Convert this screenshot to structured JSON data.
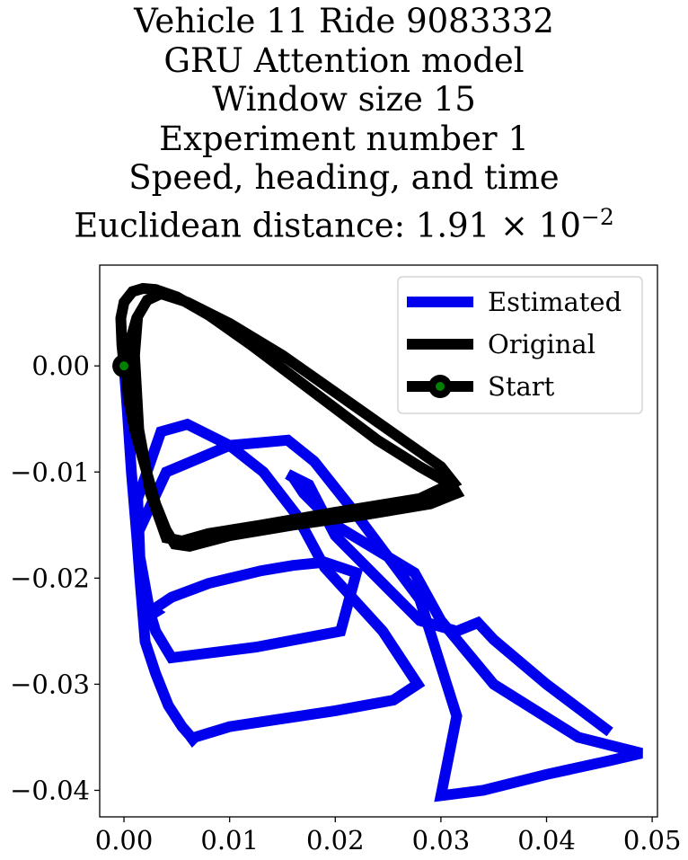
{
  "chart_data": {
    "type": "line",
    "title_lines": [
      "Vehicle 11 Ride 9083332",
      "GRU Attention model",
      "Window size 15",
      "Experiment number 1",
      "Speed, heading, and time"
    ],
    "title_metric": {
      "prefix": "Euclidean distance: ",
      "mantissa": "1.91",
      "times": "×",
      "base": "10",
      "exponent": "−2"
    },
    "xlabel": "",
    "ylabel": "",
    "xlim": [
      -0.0023,
      0.0505
    ],
    "ylim": [
      -0.0425,
      0.0095
    ],
    "x_ticks": [
      0.0,
      0.01,
      0.02,
      0.03,
      0.04,
      0.05
    ],
    "x_tick_labels": [
      "0.00",
      "0.01",
      "0.02",
      "0.03",
      "0.04",
      "0.05"
    ],
    "y_ticks": [
      0.0,
      -0.01,
      -0.02,
      -0.03,
      -0.04
    ],
    "y_tick_labels": [
      "0.00",
      "−0.01",
      "−0.02",
      "−0.03",
      "−0.04"
    ],
    "grid": false,
    "legend_position": "top-right",
    "colors": {
      "estimated": "#0000ee",
      "original": "#000000",
      "start_marker": "#008000"
    },
    "series": [
      {
        "name": "Estimated",
        "color": "#0000ee",
        "x": [
          0.0,
          0.0003,
          0.0007,
          0.0012,
          0.0015,
          0.002,
          0.003,
          0.0042,
          0.0055,
          0.0062,
          0.0065,
          0.0067,
          0.01,
          0.02,
          0.0255,
          0.0278,
          0.0245,
          0.019,
          0.0163,
          0.0132,
          0.01,
          0.006,
          0.0035,
          0.0013,
          0.0015,
          0.0025,
          0.003,
          0.0027,
          0.0045,
          0.008,
          0.013,
          0.016,
          0.019,
          0.022,
          0.0205,
          0.0125,
          0.0045,
          0.003,
          0.0015,
          0.0012,
          0.004,
          0.01,
          0.0155,
          0.018,
          0.022,
          0.028,
          0.0315,
          0.03,
          0.034,
          0.036,
          0.04,
          0.046,
          0.049,
          0.043,
          0.035,
          0.03,
          0.0275,
          0.02,
          0.017,
          0.016,
          0.0155,
          0.0175,
          0.02,
          0.028,
          0.0315,
          0.0335,
          0.035,
          0.04,
          0.046
        ],
        "y": [
          0.0,
          -0.004,
          -0.01,
          -0.016,
          -0.02,
          -0.026,
          -0.029,
          -0.032,
          -0.034,
          -0.0348,
          -0.0352,
          -0.035,
          -0.034,
          -0.0325,
          -0.0315,
          -0.03,
          -0.025,
          -0.019,
          -0.014,
          -0.01,
          -0.0075,
          -0.0055,
          -0.0062,
          -0.0125,
          -0.018,
          -0.0235,
          -0.0232,
          -0.023,
          -0.0218,
          -0.0205,
          -0.0193,
          -0.0188,
          -0.0185,
          -0.0195,
          -0.025,
          -0.0265,
          -0.0275,
          -0.025,
          -0.02,
          -0.016,
          -0.01,
          -0.0075,
          -0.007,
          -0.009,
          -0.014,
          -0.022,
          -0.033,
          -0.0405,
          -0.04,
          -0.0395,
          -0.0385,
          -0.0372,
          -0.0365,
          -0.035,
          -0.03,
          -0.024,
          -0.0195,
          -0.015,
          -0.012,
          -0.0105,
          -0.0102,
          -0.0112,
          -0.016,
          -0.024,
          -0.025,
          -0.0242,
          -0.0258,
          -0.03,
          -0.0345
        ]
      },
      {
        "name": "Original",
        "color": "#000000",
        "x": [
          0.0,
          -0.0002,
          -0.0003,
          0.0,
          0.0008,
          0.0018,
          0.003,
          0.005,
          0.008,
          0.012,
          0.016,
          0.02,
          0.024,
          0.028,
          0.031,
          0.0315,
          0.029,
          0.023,
          0.016,
          0.01,
          0.0062,
          0.0048,
          0.004,
          0.003,
          0.002,
          0.001,
          0.0004,
          0.0002,
          0.0005,
          0.0012,
          0.0022,
          0.0035,
          0.006,
          0.01,
          0.015,
          0.02,
          0.025,
          0.03,
          0.0312,
          0.028,
          0.02,
          0.013,
          0.008,
          0.0055,
          0.004,
          0.0025,
          0.0014,
          0.001,
          0.0013
        ],
        "y": [
          0.0,
          0.002,
          0.0045,
          0.006,
          0.007,
          0.0073,
          0.0072,
          0.0065,
          0.0048,
          0.002,
          -0.001,
          -0.004,
          -0.007,
          -0.0095,
          -0.0112,
          -0.012,
          -0.013,
          -0.014,
          -0.015,
          -0.016,
          -0.017,
          -0.0168,
          -0.0155,
          -0.013,
          -0.0095,
          -0.006,
          -0.003,
          -0.0005,
          0.002,
          0.0045,
          0.0062,
          0.0068,
          0.006,
          0.004,
          0.001,
          -0.0025,
          -0.006,
          -0.0095,
          -0.011,
          -0.0125,
          -0.0138,
          -0.015,
          -0.0158,
          -0.0165,
          -0.0162,
          -0.012,
          -0.006,
          0.001,
          0.0048
        ]
      }
    ],
    "start_point": {
      "name": "Start",
      "x": 0.0,
      "y": 0.0
    },
    "legend": [
      {
        "label": "Estimated",
        "kind": "line",
        "color": "#0000ee"
      },
      {
        "label": "Original",
        "kind": "line",
        "color": "#000000"
      },
      {
        "label": "Start",
        "kind": "marker",
        "color": "#000000",
        "inner_color": "#008000"
      }
    ]
  }
}
